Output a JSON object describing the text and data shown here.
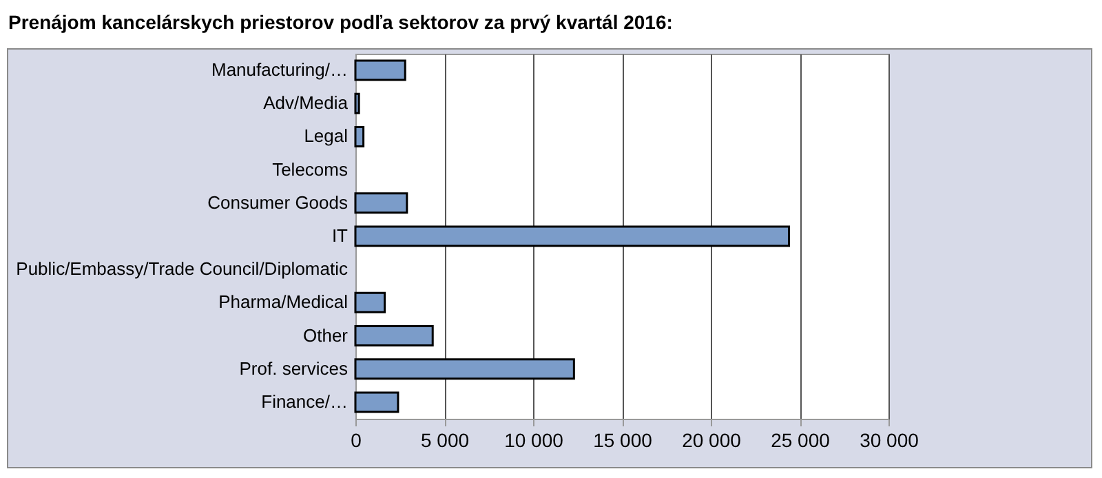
{
  "chart_data": {
    "type": "bar",
    "orientation": "horizontal",
    "title": "Prenájom kancelárskych priestorov podľa sektorov za prvý kvartál 2016:",
    "categories": [
      "Manufacturing/…",
      "Adv/Media",
      "Legal",
      "Telecoms",
      "Consumer Goods",
      "IT",
      "Public/Embassy/Trade Council/Diplomatic",
      "Pharma/Medical",
      "Other",
      "Prof. services",
      "Finance/…"
    ],
    "values": [
      2800,
      200,
      450,
      0,
      2900,
      24400,
      0,
      1650,
      4350,
      12300,
      2400
    ],
    "color": "#7b9cc9",
    "xlim": [
      0,
      30000
    ],
    "xticks": [
      {
        "value": 0,
        "label": "0"
      },
      {
        "value": 5000,
        "label": "5 000"
      },
      {
        "value": 10000,
        "label": "10 000"
      },
      {
        "value": 15000,
        "label": "15 000"
      },
      {
        "value": 20000,
        "label": "20 000"
      },
      {
        "value": 25000,
        "label": "25 000"
      },
      {
        "value": 30000,
        "label": "30 000"
      }
    ],
    "grid": "x"
  }
}
